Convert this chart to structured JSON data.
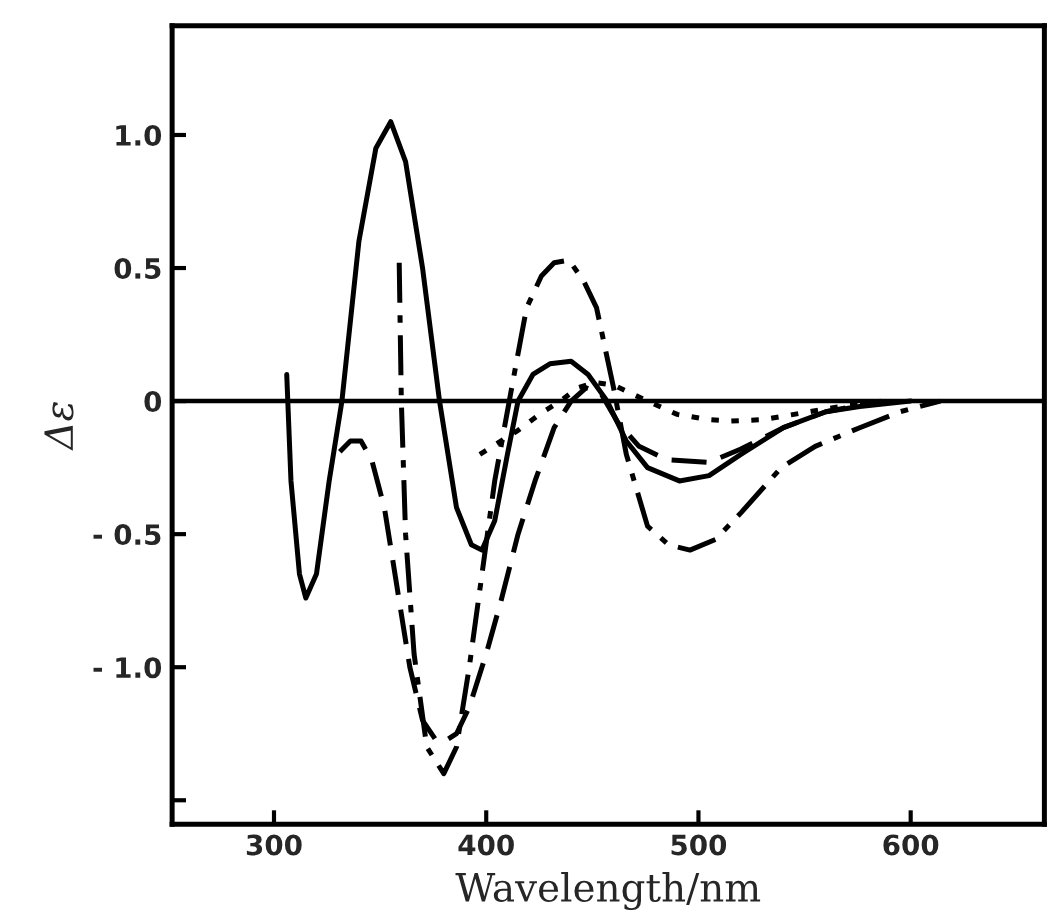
{
  "chart_data": {
    "type": "line",
    "xlabel": "Wavelength/nm",
    "ylabel": "Δε",
    "xlim": [
      252,
      663
    ],
    "ylim": [
      -1.59,
      1.41
    ],
    "xticks": [
      300,
      400,
      500,
      600
    ],
    "yticks": [
      {
        "value": 1.0,
        "label": "1.0"
      },
      {
        "value": 0.5,
        "label": "0.5"
      },
      0,
      {
        "value": -0.5,
        "label": "- 0.5"
      },
      {
        "value": -1.0,
        "label": "- 1.0"
      },
      {
        "value": -1.5,
        "label": null
      }
    ],
    "grid": false,
    "legend": false,
    "ref_lines": [
      {
        "axis": "y",
        "value": 0,
        "color": "#000000",
        "line_style": "solid"
      }
    ],
    "series": [
      {
        "color": "#000000",
        "line_style": "solid",
        "x": [
          306,
          308,
          312,
          315,
          320,
          326,
          332,
          340,
          348,
          355,
          362,
          370,
          378,
          386,
          393,
          398,
          404,
          410,
          415,
          422,
          430,
          440,
          448,
          457,
          466,
          476,
          491,
          505,
          520,
          540,
          560,
          576,
          600
        ],
        "values": [
          0.1,
          -0.3,
          -0.65,
          -0.74,
          -0.65,
          -0.3,
          0,
          0.6,
          0.95,
          1.05,
          0.9,
          0.5,
          0,
          -0.4,
          -0.54,
          -0.56,
          -0.45,
          -0.2,
          0,
          0.1,
          0.14,
          0.15,
          0.1,
          0,
          -0.15,
          -0.25,
          -0.3,
          -0.28,
          -0.2,
          -0.1,
          -0.04,
          -0.02,
          0
        ]
      },
      {
        "color": "#000000",
        "line_style": "dashdot",
        "x": [
          359,
          360,
          362,
          366,
          372,
          380,
          386,
          392,
          398,
          404,
          412,
          419,
          426,
          432,
          439,
          446,
          452,
          460,
          466,
          476,
          486,
          496,
          508,
          520,
          539,
          555,
          576,
          595,
          614
        ],
        "values": [
          0.52,
          0,
          -0.5,
          -0.95,
          -1.3,
          -1.4,
          -1.3,
          -1.0,
          -0.65,
          -0.3,
          0.05,
          0.35,
          0.47,
          0.52,
          0.53,
          0.45,
          0.35,
          0.05,
          -0.2,
          -0.47,
          -0.54,
          -0.56,
          -0.52,
          -0.42,
          -0.25,
          -0.17,
          -0.1,
          -0.04,
          0
        ]
      },
      {
        "color": "#000000",
        "line_style": "dashed",
        "x": [
          331,
          336,
          341,
          346,
          352,
          358,
          364,
          370,
          376,
          380,
          386,
          392,
          400,
          407,
          415,
          423,
          432,
          440,
          447,
          454,
          462,
          472,
          485,
          505,
          520,
          540,
          560,
          586
        ],
        "values": [
          -0.19,
          -0.15,
          -0.15,
          -0.22,
          -0.4,
          -0.7,
          -1.0,
          -1.2,
          -1.27,
          -1.28,
          -1.25,
          -1.15,
          -0.95,
          -0.75,
          -0.5,
          -0.3,
          -0.1,
          0,
          0.05,
          0.03,
          -0.08,
          -0.17,
          -0.22,
          -0.23,
          -0.18,
          -0.1,
          -0.04,
          0
        ]
      },
      {
        "color": "#000000",
        "line_style": "dotted",
        "x": [
          397,
          405,
          415,
          425,
          435,
          443,
          451,
          460,
          468,
          476,
          490,
          505,
          515,
          530,
          545,
          567,
          590
        ],
        "values": [
          -0.2,
          -0.16,
          -0.11,
          -0.05,
          0,
          0.05,
          0.07,
          0.06,
          0.03,
          0,
          -0.05,
          -0.07,
          -0.075,
          -0.07,
          -0.05,
          -0.02,
          0
        ]
      }
    ]
  }
}
